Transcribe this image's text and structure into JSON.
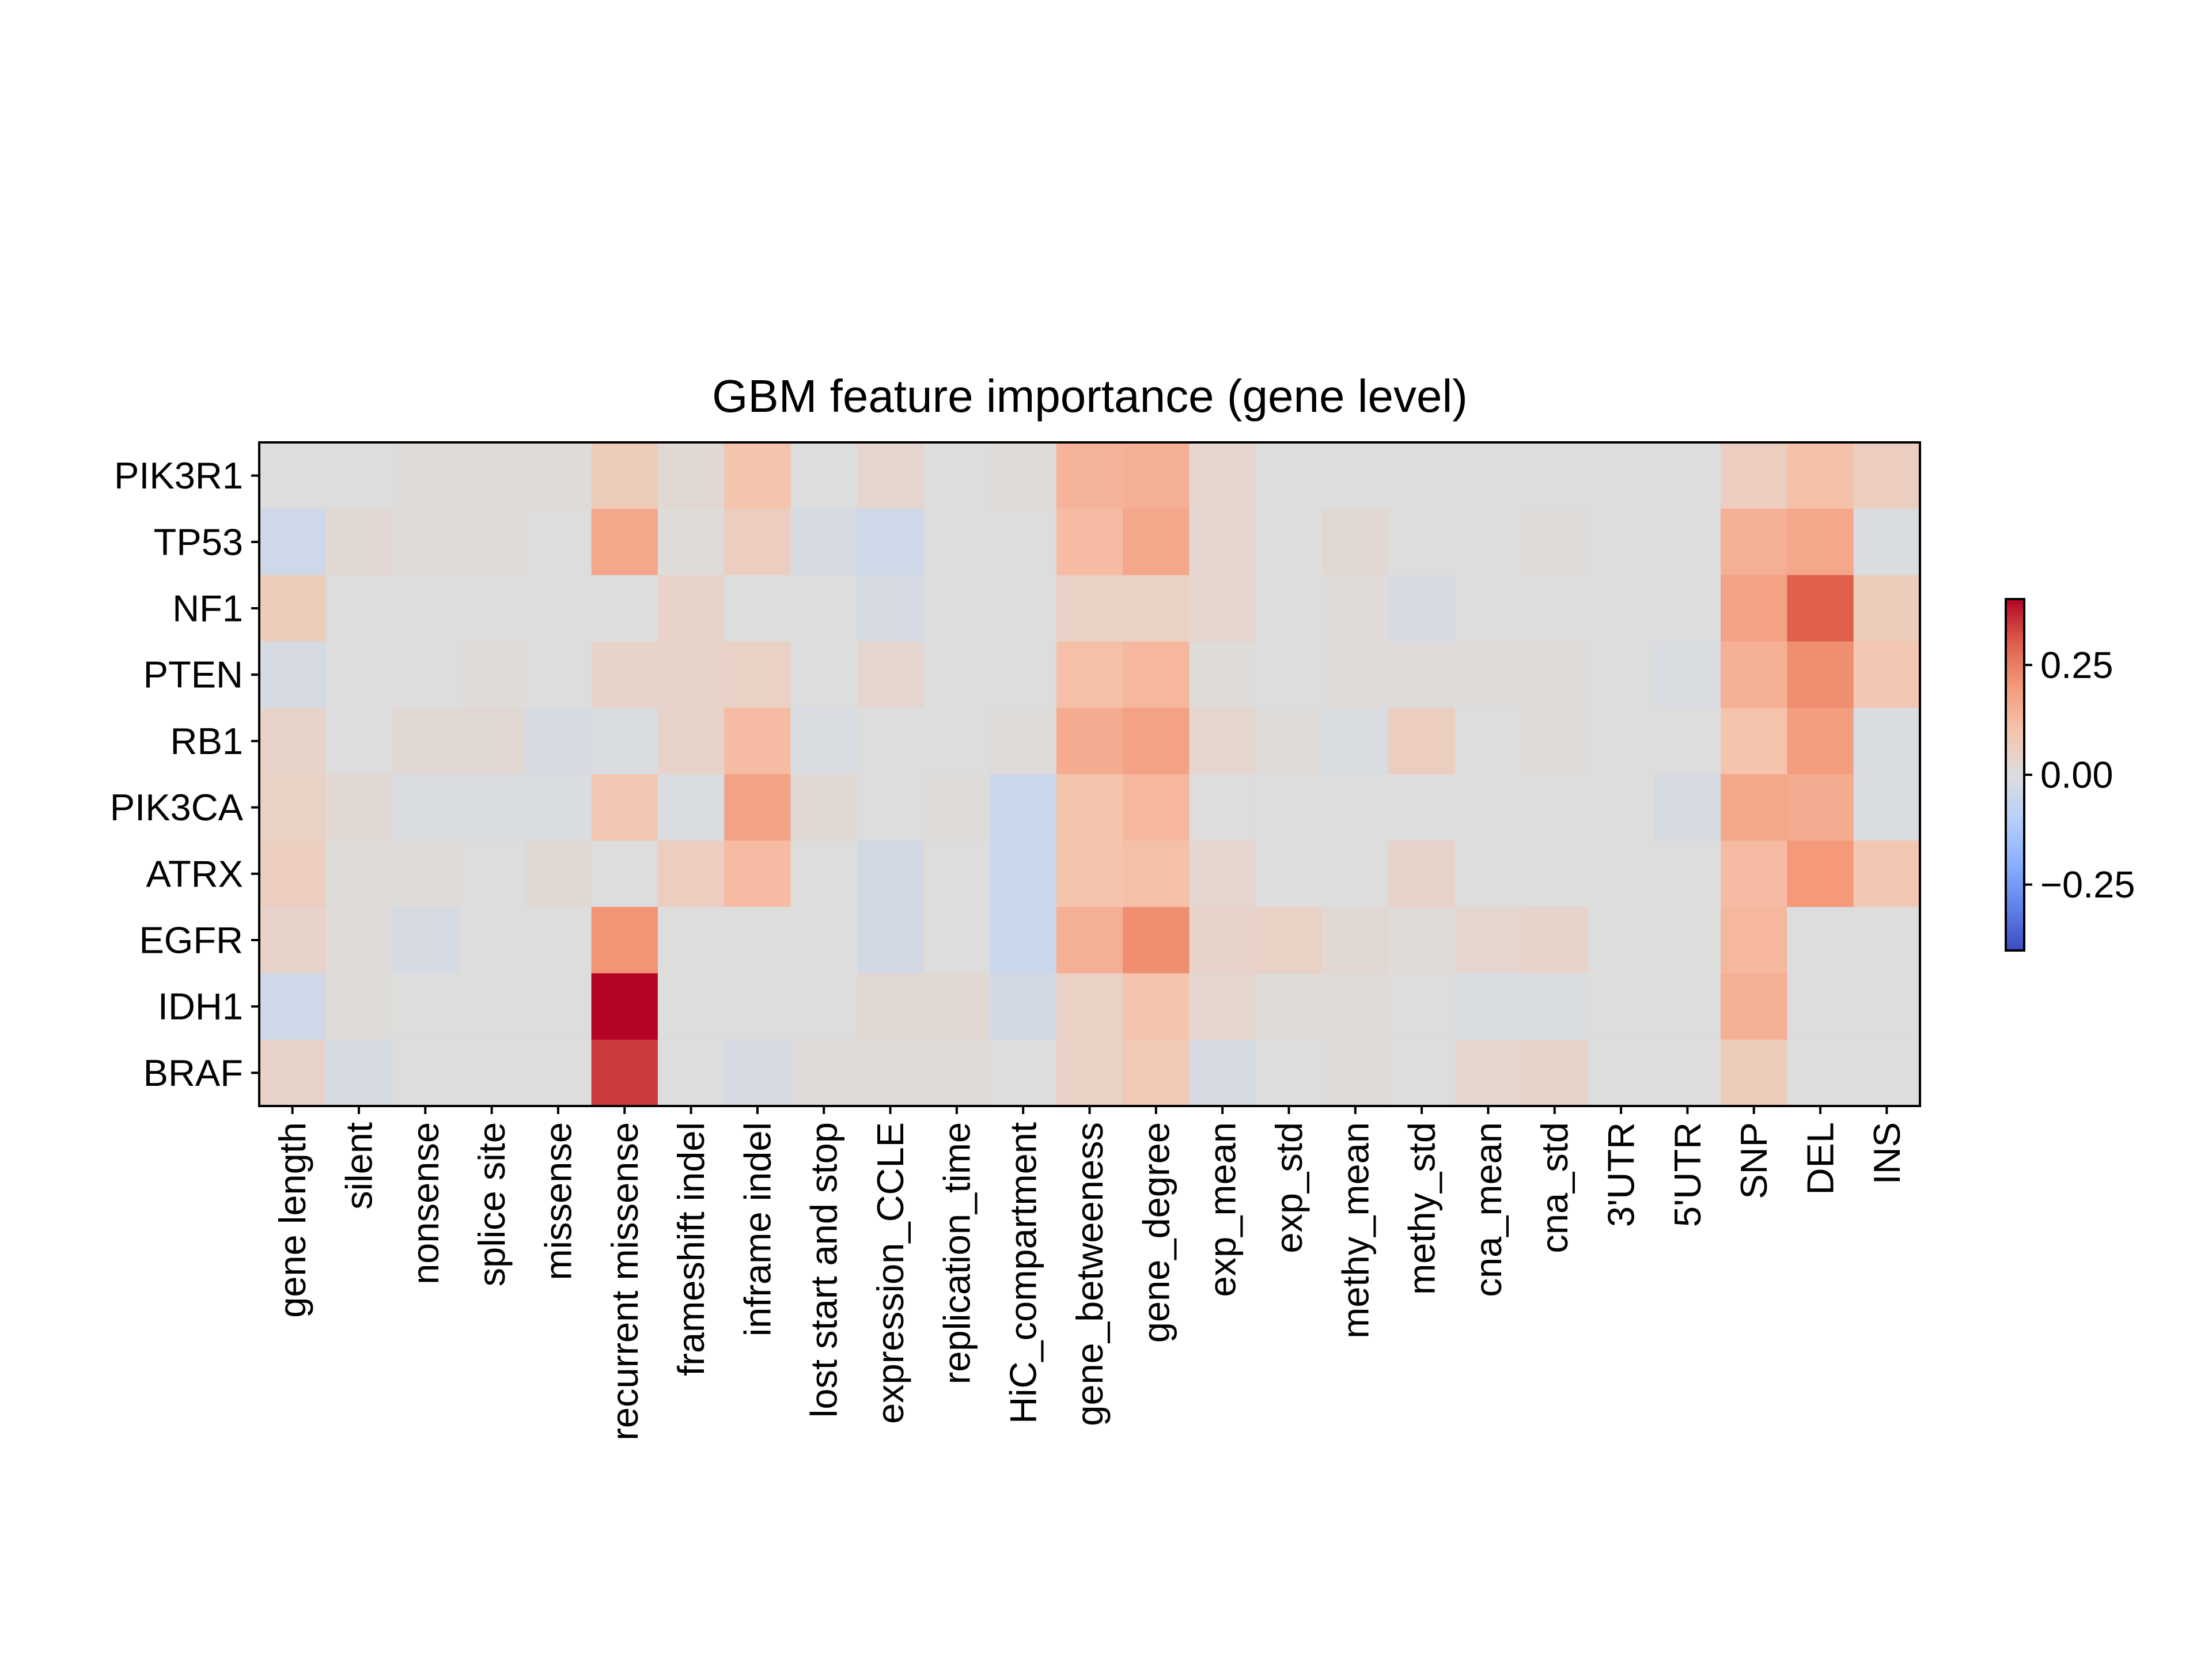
{
  "chart_data": {
    "type": "heatmap",
    "title": "GBM feature importance (gene level)",
    "rows": [
      "PIK3R1",
      "TP53",
      "NF1",
      "PTEN",
      "RB1",
      "PIK3CA",
      "ATRX",
      "EGFR",
      "IDH1",
      "BRAF"
    ],
    "columns": [
      "gene length",
      "silent",
      "nonsense",
      "splice site",
      "missense",
      "recurrent missense",
      "frameshift indel",
      "inframe indel",
      "lost start and stop",
      "expression_CCLE",
      "replication_time",
      "HiC_compartment",
      "gene_betweeness",
      "gene_degree",
      "exp_mean",
      "exp_std",
      "methy_mean",
      "methy_std",
      "cna_mean",
      "cna_std",
      "3'UTR",
      "5'UTR",
      "SNP",
      "DEL",
      "INS"
    ],
    "values": [
      [
        0.0,
        0.0,
        0.01,
        0.01,
        0.01,
        0.07,
        0.02,
        0.1,
        0.0,
        0.03,
        0.0,
        0.01,
        0.14,
        0.15,
        0.03,
        0.0,
        0.0,
        0.0,
        0.0,
        0.0,
        0.0,
        0.0,
        0.06,
        0.11,
        0.06
      ],
      [
        -0.04,
        0.02,
        0.01,
        0.01,
        0.0,
        0.17,
        0.01,
        0.06,
        -0.02,
        -0.04,
        0.0,
        0.0,
        0.12,
        0.17,
        0.03,
        0.0,
        0.02,
        0.0,
        0.0,
        0.01,
        0.0,
        0.0,
        0.15,
        0.17,
        -0.01
      ],
      [
        0.07,
        0.0,
        0.0,
        0.0,
        0.0,
        0.0,
        0.04,
        0.0,
        0.0,
        -0.02,
        0.0,
        0.0,
        0.05,
        0.05,
        0.03,
        0.0,
        0.01,
        -0.02,
        0.0,
        0.0,
        0.0,
        0.0,
        0.18,
        0.3,
        0.07
      ],
      [
        -0.02,
        0.0,
        0.0,
        0.01,
        0.0,
        0.04,
        0.04,
        0.05,
        0.0,
        0.03,
        0.0,
        0.0,
        0.11,
        0.13,
        0.01,
        0.0,
        0.01,
        0.01,
        0.01,
        0.01,
        0.0,
        -0.01,
        0.15,
        0.22,
        0.09
      ],
      [
        0.04,
        0.0,
        0.02,
        0.02,
        -0.02,
        -0.01,
        0.04,
        0.12,
        -0.01,
        0.0,
        0.0,
        0.01,
        0.16,
        0.18,
        0.03,
        0.01,
        -0.01,
        0.06,
        0.0,
        0.01,
        0.0,
        0.0,
        0.1,
        0.19,
        -0.01
      ],
      [
        0.05,
        0.02,
        -0.01,
        -0.01,
        -0.01,
        0.09,
        -0.01,
        0.18,
        0.02,
        0.0,
        0.01,
        -0.05,
        0.1,
        0.13,
        0.0,
        0.0,
        0.0,
        0.0,
        0.0,
        0.0,
        0.0,
        -0.02,
        0.17,
        0.16,
        -0.01
      ],
      [
        0.06,
        0.01,
        0.01,
        0.0,
        0.02,
        0.0,
        0.06,
        0.12,
        0.0,
        -0.03,
        0.0,
        -0.05,
        0.1,
        0.11,
        0.03,
        0.0,
        0.0,
        0.04,
        0.0,
        0.0,
        0.0,
        0.0,
        0.12,
        0.2,
        0.09
      ],
      [
        0.04,
        0.01,
        -0.02,
        0.0,
        0.0,
        0.21,
        0.0,
        0.0,
        0.0,
        -0.03,
        0.0,
        -0.05,
        0.15,
        0.22,
        0.04,
        0.05,
        0.02,
        0.01,
        0.03,
        0.04,
        0.0,
        0.0,
        0.13,
        0.0,
        0.0
      ],
      [
        -0.04,
        0.01,
        0.0,
        0.0,
        0.0,
        0.4,
        0.0,
        0.0,
        0.0,
        0.02,
        0.02,
        -0.03,
        0.05,
        0.1,
        0.03,
        0.01,
        0.01,
        0.0,
        -0.01,
        -0.01,
        0.0,
        0.0,
        0.15,
        0.0,
        0.0
      ],
      [
        0.04,
        -0.02,
        0.0,
        0.0,
        0.0,
        0.34,
        0.0,
        -0.02,
        0.01,
        0.01,
        0.01,
        0.0,
        0.05,
        0.08,
        -0.02,
        0.0,
        0.01,
        0.0,
        0.03,
        0.04,
        0.0,
        0.0,
        0.07,
        0.0,
        0.0
      ]
    ],
    "colormap": "coolwarm",
    "vmin": -0.4,
    "vmax": 0.4,
    "colorbar_ticks": [
      0.25,
      0.0,
      -0.25
    ],
    "colorbar_tick_labels": [
      "0.25",
      "0.00",
      "−0.25"
    ]
  }
}
